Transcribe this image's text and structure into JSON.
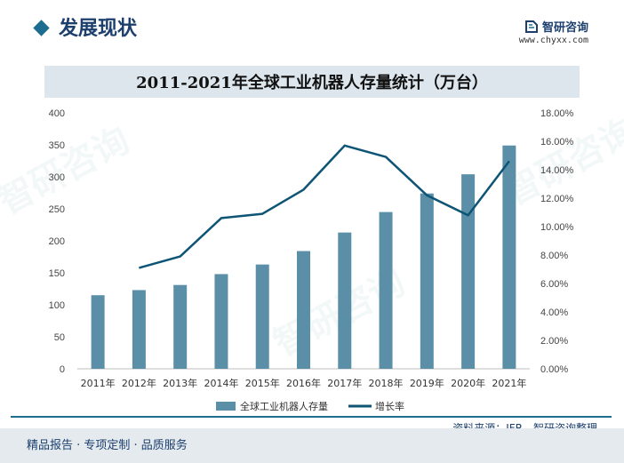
{
  "header": {
    "title": "发展现状",
    "brand_name": "智研咨询",
    "brand_url": "www.chyxx.com"
  },
  "watermark": {
    "text": "智研咨询"
  },
  "footer": {
    "source": "资料来源：IFR、智研咨询整理",
    "tagline": "精品报告 · 专项定制 · 品质服务"
  },
  "colors": {
    "bar": "#5b8fa8",
    "line": "#0e5475",
    "accent": "#1c6d8f"
  },
  "chart_data": {
    "type": "bar+line",
    "title": "2011-2021年全球工业机器人存量统计（万台）",
    "categories": [
      "2011年",
      "2012年",
      "2013年",
      "2014年",
      "2015年",
      "2016年",
      "2017年",
      "2018年",
      "2019年",
      "2020年",
      "2021年"
    ],
    "series": [
      {
        "name": "全球工业机器人存量",
        "type": "bar",
        "axis": "left",
        "values": [
          115,
          123,
          131,
          148,
          163,
          184,
          213,
          245,
          274,
          304,
          349
        ]
      },
      {
        "name": "增长率",
        "type": "line",
        "axis": "right",
        "values": [
          null,
          7.1,
          7.9,
          10.6,
          10.9,
          12.6,
          15.7,
          14.9,
          12.2,
          10.8,
          14.6
        ]
      }
    ],
    "left_axis": {
      "min": 0,
      "max": 400,
      "step": 50,
      "ticks": [
        "0",
        "50",
        "100",
        "150",
        "200",
        "250",
        "300",
        "350",
        "400"
      ]
    },
    "right_axis": {
      "min": 0,
      "max": 18,
      "step": 2,
      "ticks": [
        "0.00%",
        "2.00%",
        "4.00%",
        "6.00%",
        "8.00%",
        "10.00%",
        "12.00%",
        "14.00%",
        "16.00%",
        "18.00%"
      ]
    },
    "legend_position": "bottom"
  }
}
